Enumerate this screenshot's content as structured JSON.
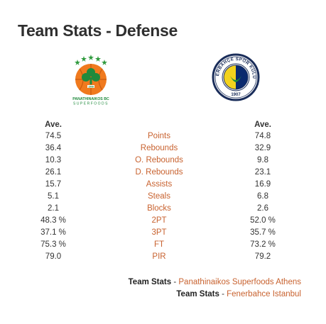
{
  "page": {
    "title": "Team Stats - Defense"
  },
  "logos": {
    "home": {
      "icon": "panathinaikos-logo",
      "text_top": "PANATHINAIKOS BC",
      "text_bottom": "SUPERFOODS",
      "color": "#1f8a3c",
      "accent": "#f07a1e"
    },
    "away": {
      "icon": "fenerbahce-logo",
      "text": "FENERBAHÇE SPOR KULÜBÜ",
      "year": "1907",
      "color": "#0b2a6e",
      "accent": "#f3d21c"
    }
  },
  "headers": {
    "home": "Ave.",
    "away": "Ave."
  },
  "rows": [
    {
      "home": "74.5",
      "label": "Points",
      "away": "74.8"
    },
    {
      "home": "36.4",
      "label": "Rebounds",
      "away": "32.9"
    },
    {
      "home": "10.3",
      "label": "O. Rebounds",
      "away": "9.8"
    },
    {
      "home": "26.1",
      "label": "D. Rebounds",
      "away": "23.1"
    },
    {
      "home": "15.7",
      "label": "Assists",
      "away": "16.9"
    },
    {
      "home": "5.1",
      "label": "Steals",
      "away": "6.8"
    },
    {
      "home": "2.1",
      "label": "Blocks",
      "away": "2.6"
    },
    {
      "home": "48.3 %",
      "label": "2PT",
      "away": "52.0 %"
    },
    {
      "home": "37.1 %",
      "label": "3PT",
      "away": "35.7 %"
    },
    {
      "home": "75.3 %",
      "label": "FT",
      "away": "73.2 %"
    },
    {
      "home": "79.0",
      "label": "PIR",
      "away": "79.2"
    }
  ],
  "footer": {
    "line1": {
      "prefix": "Team Stats",
      "sep": " - ",
      "team": "Panathinaikos Superfoods Athens"
    },
    "line2": {
      "prefix": "Team Stats",
      "sep": " - ",
      "team": "Fenerbahce Istanbul"
    }
  }
}
